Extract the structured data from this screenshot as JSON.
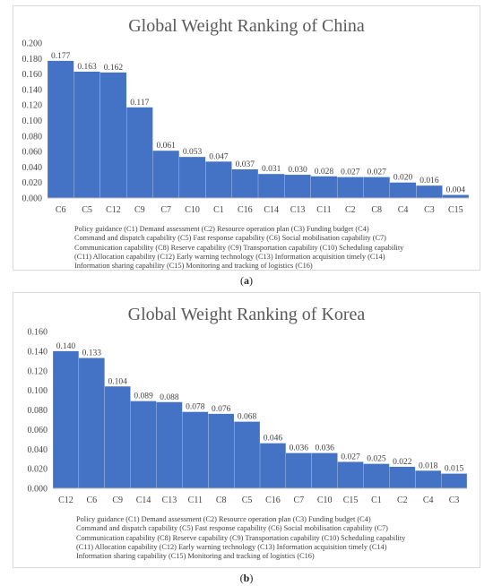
{
  "chart_data": [
    {
      "type": "bar",
      "title": "Global Weight Ranking of China",
      "categories": [
        "C6",
        "C5",
        "C12",
        "C9",
        "C7",
        "C10",
        "C1",
        "C16",
        "C14",
        "C13",
        "C11",
        "C2",
        "C8",
        "C4",
        "C3",
        "C15"
      ],
      "values": [
        0.177,
        0.163,
        0.162,
        0.117,
        0.061,
        0.053,
        0.047,
        0.037,
        0.031,
        0.03,
        0.028,
        0.027,
        0.027,
        0.02,
        0.016,
        0.004
      ],
      "value_labels": [
        "0.177",
        "0.163",
        "0.162",
        "0.117",
        "0.061",
        "0.053",
        "0.047",
        "0.037",
        "0.031",
        "0.030",
        "0.028",
        "0.027",
        "0.027",
        "0.020",
        "0.016",
        "0.004"
      ],
      "ylim": [
        0,
        0.2
      ],
      "yticks": [
        "0.000",
        "0.020",
        "0.040",
        "0.060",
        "0.080",
        "0.100",
        "0.120",
        "0.140",
        "0.160",
        "0.180",
        "0.200"
      ],
      "grid": false,
      "bar_color": "#4472C4",
      "xlabel": "",
      "ylabel": "",
      "legend_lines": [
        "Policy guidance (C1) Demand assessment (C2) Resource operation plan (C3) Funding budget (C4)",
        "Command and dispatch capability (C5) Fast response capability (C6) Social mobilisation capability (C7)",
        "Communication capability (C8) Reserve capability (C9) Transportation capability (C10) Scheduling capability",
        "(C11) Allocation capability (C12) Early warning technology (C13) Information acquisition timely (C14)",
        "Information sharing capability (C15) Monitoring and tracking of logistics (C16)"
      ]
    },
    {
      "type": "bar",
      "title": "Global Weight Ranking of Korea",
      "categories": [
        "C12",
        "C6",
        "C9",
        "C14",
        "C13",
        "C11",
        "C8",
        "C5",
        "C16",
        "C7",
        "C10",
        "C15",
        "C1",
        "C2",
        "C4",
        "C3"
      ],
      "values": [
        0.14,
        0.133,
        0.104,
        0.089,
        0.088,
        0.078,
        0.076,
        0.068,
        0.046,
        0.036,
        0.036,
        0.027,
        0.025,
        0.022,
        0.018,
        0.015
      ],
      "value_labels": [
        "0.140",
        "0.133",
        "0.104",
        "0.089",
        "0.088",
        "0.078",
        "0.076",
        "0.068",
        "0.046",
        "0.036",
        "0.036",
        "0.027",
        "0.025",
        "0.022",
        "0.018",
        "0.015"
      ],
      "ylim": [
        0,
        0.16
      ],
      "yticks": [
        "0.000",
        "0.020",
        "0.040",
        "0.060",
        "0.080",
        "0.100",
        "0.120",
        "0.140",
        "0.160"
      ],
      "grid": false,
      "bar_color": "#4472C4",
      "xlabel": "",
      "ylabel": "",
      "legend_lines": [
        "Policy guidance (C1) Demand assessment (C2) Resource operation plan (C3) Funding budget (C4)",
        "Command and dispatch capability (C5) Fast response capability (C6) Social mobilisation capability (C7)",
        "Communication capability (C8) Reserve capability (C9) Transportation capability (C10) Scheduling capability",
        "(C11) Allocation capability (C12) Early warning technology (C13) Information acquisition timely (C14)",
        "Information sharing capability (C15) Monitoring and tracking of logistics (C16)"
      ]
    }
  ],
  "captions": {
    "a": "a",
    "b": "b"
  }
}
